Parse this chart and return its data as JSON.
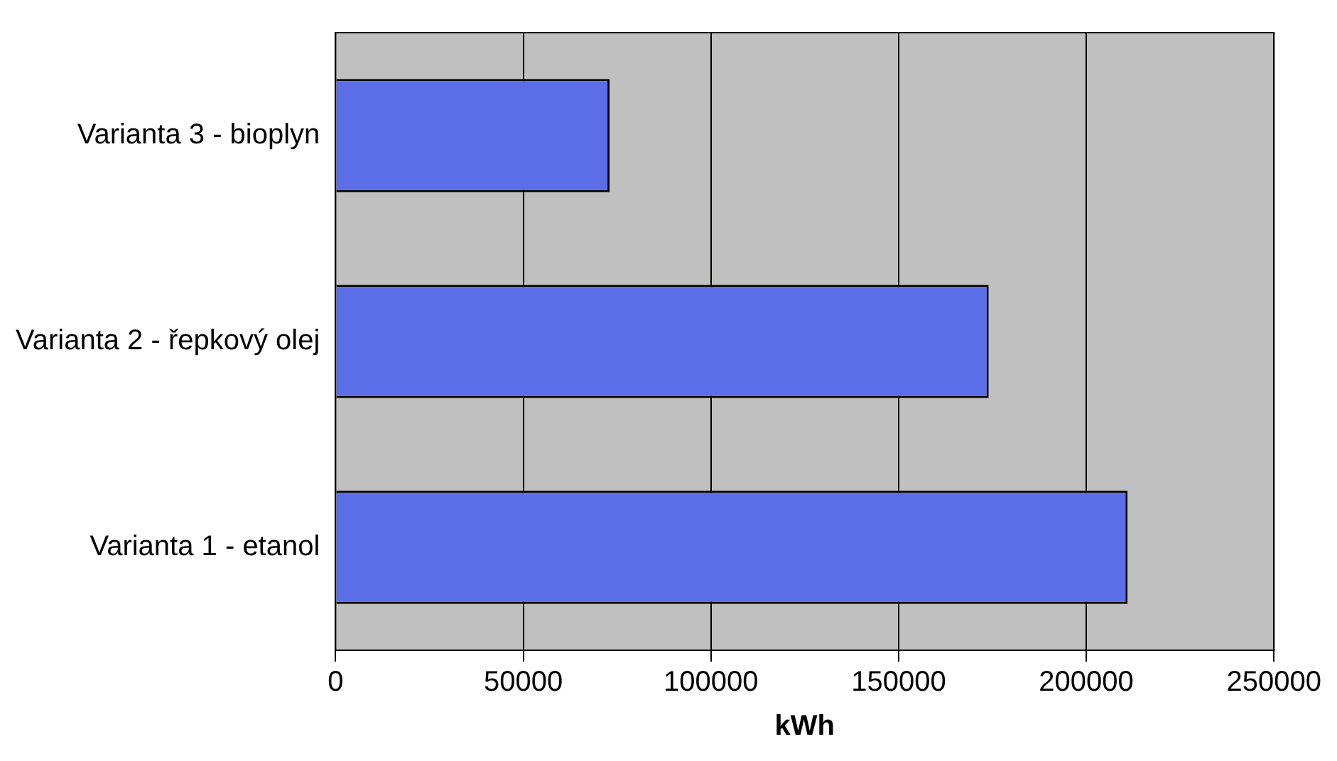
{
  "chart_data": {
    "type": "bar",
    "orientation": "horizontal",
    "xlabel": "kWh",
    "categories": [
      "Varianta 3 - bioplyn",
      "Varianta 2 - řepkový olej",
      "Varianta 1 - etanol"
    ],
    "values": [
      73000,
      174000,
      211000
    ],
    "color": "#5b6ee8",
    "xlim": [
      0,
      250000
    ],
    "xticks": [
      0,
      50000,
      100000,
      150000,
      200000,
      250000
    ],
    "grid": "x",
    "legend": false
  }
}
